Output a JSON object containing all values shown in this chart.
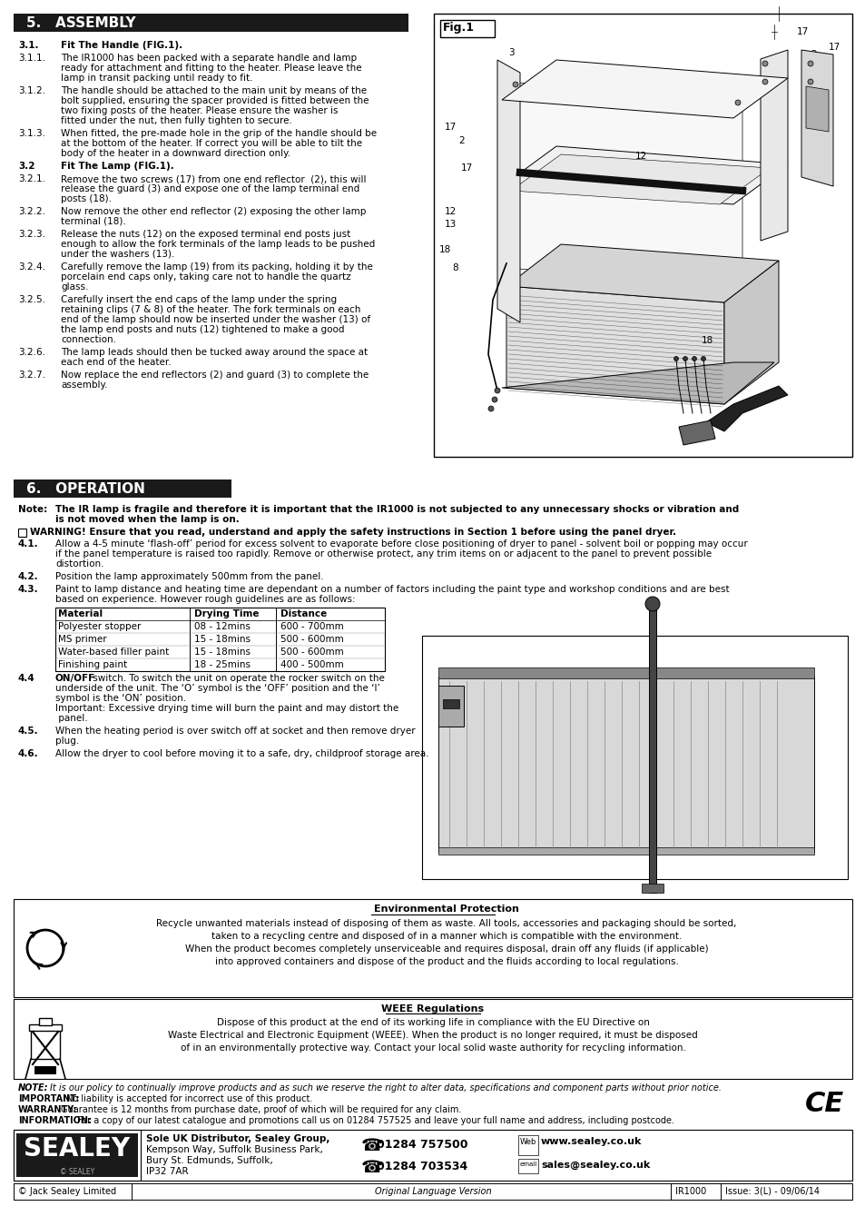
{
  "page_bg": "#ffffff",
  "section_header_bg": "#1a1a1a",
  "section_header_fg": "#ffffff",
  "section5_title": "5.   ASSEMBLY",
  "section6_title": "6.   OPERATION",
  "assembly_items": [
    {
      "num": "3.1.",
      "bold_num": true,
      "bold_text": true,
      "text": "Fit The Handle (FIG.1)."
    },
    {
      "num": "3.1.1.",
      "bold_num": false,
      "bold_text": false,
      "text": "The IR1000 has been packed with a separate handle and lamp\nready for attachment and fitting to the heater. Please leave the\nlamp in transit packing until ready to fit."
    },
    {
      "num": "3.1.2.",
      "bold_num": false,
      "bold_text": false,
      "text": "The handle should be attached to the main unit by means of the\nbolt supplied, ensuring the spacer provided is fitted between the\ntwo fixing posts of the heater. Please ensure the washer is\nfitted under the nut, then fully tighten to secure."
    },
    {
      "num": "3.1.3.",
      "bold_num": false,
      "bold_text": false,
      "text": "When fitted, the pre-made hole in the grip of the handle should be\nat the bottom of the heater. If correct you will be able to tilt the\nbody of the heater in a downward direction only."
    },
    {
      "num": "3.2",
      "bold_num": true,
      "bold_text": true,
      "text": "Fit The Lamp (FIG.1)."
    },
    {
      "num": "3.2.1.",
      "bold_num": false,
      "bold_text": false,
      "text": "Remove the two screws (17) from one end reflector  (2), this will\nrelease the guard (3) and expose one of the lamp terminal end\nposts (18)."
    },
    {
      "num": "3.2.2.",
      "bold_num": false,
      "bold_text": false,
      "text": "Now remove the other end reflector (2) exposing the other lamp\nterminal (18)."
    },
    {
      "num": "3.2.3.",
      "bold_num": false,
      "bold_text": false,
      "text": "Release the nuts (12) on the exposed terminal end posts just\nenough to allow the fork terminals of the lamp leads to be pushed\nunder the washers (13)."
    },
    {
      "num": "3.2.4.",
      "bold_num": false,
      "bold_text": false,
      "text": "Carefully remove the lamp (19) from its packing, holding it by the\nporcelain end caps only, taking care not to handle the quartz\nglass."
    },
    {
      "num": "3.2.5.",
      "bold_num": false,
      "bold_text": false,
      "text": "Carefully insert the end caps of the lamp under the spring\nretaining clips (7 & 8) of the heater. The fork terminals on each\nend of the lamp should now be inserted under the washer (13) of\nthe lamp end posts and nuts (12) tightened to make a good\nconnection."
    },
    {
      "num": "3.2.6.",
      "bold_num": false,
      "bold_text": false,
      "text": "The lamp leads should then be tucked away around the space at\neach end of the heater."
    },
    {
      "num": "3.2.7.",
      "bold_num": false,
      "bold_text": false,
      "text": "Now replace the end reflectors (2) and guard (3) to complete the\nassembly."
    }
  ],
  "note_bold": "The IR lamp is fragile and therefore it is important that the IR1000 is not subjected to any unnecessary shocks or vibration and",
  "note_bold2": "is not moved when the lamp is on.",
  "warning_text": "WARNING! Ensure that you read, understand and apply the safety instructions in Section 1 before using the panel dryer.",
  "op_items": [
    {
      "num": "4.1.",
      "bold_num": true,
      "text": "Allow a 4-5 minute ‘flash-off’ period for excess solvent to evaporate before close positioning of dryer to panel - solvent boil or popping may occur\nif the panel temperature is raised too rapidly. Remove or otherwise protect, any trim items on or adjacent to the panel to prevent possible\ndistortion."
    },
    {
      "num": "4.2.",
      "bold_num": true,
      "text": "Position the lamp approximately 500mm from the panel."
    },
    {
      "num": "4.3.",
      "bold_num": true,
      "text": "Paint to lamp distance and heating time are dependant on a number of factors including the paint type and workshop conditions and are best\nbased on experience. However rough guidelines are as follows:"
    },
    {
      "num": "4.4",
      "bold_num": true,
      "text": " switch. To switch the unit on operate the rocker switch on the\nunderside of the unit. The ‘O’ symbol is the ‘OFF’ position and the ‘I’\nsymbol is the ‘ON’ position.\nImportant: Excessive drying time will burn the paint and may distort the\n panel."
    },
    {
      "num": "4.5.",
      "bold_num": true,
      "text": "When the heating period is over switch off at socket and then remove dryer\nplug."
    },
    {
      "num": "4.6.",
      "bold_num": true,
      "text": "Allow the dryer to cool before moving it to a safe, dry, childproof storage area."
    }
  ],
  "table_headers": [
    "Material",
    "Drying Time",
    "Distance"
  ],
  "table_rows": [
    [
      "Polyester stopper",
      "08 - 12mins",
      "600 - 700mm"
    ],
    [
      "MS primer",
      "15 - 18mins",
      "500 - 600mm"
    ],
    [
      "Water-based filler paint",
      "15 - 18mins",
      "500 - 600mm"
    ],
    [
      "Finishing paint",
      "18 - 25mins",
      "400 - 500mm"
    ]
  ],
  "env_title": "Environmental Protection",
  "env_text_lines": [
    "Recycle unwanted materials instead of disposing of them as waste. All tools, accessories and packaging should be sorted,",
    "taken to a recycling centre and disposed of in a manner which is compatible with the environment.",
    "When the product becomes completely unserviceable and requires disposal, drain off any fluids (if applicable)",
    "into approved containers and dispose of the product and the fluids according to local regulations."
  ],
  "weee_title": "WEEE Regulations",
  "weee_text_lines": [
    "Dispose of this product at the end of its working life in compliance with the EU Directive on",
    "Waste Electrical and Electronic Equipment (WEEE). When the product is no longer required, it must be disposed",
    "of in an environmentally protective way. Contact your local solid waste authority for recycling information."
  ],
  "note_line": "NOTE: It is our policy to continually improve products and as such we reserve the right to alter data, specifications and component parts without prior notice.",
  "important_line": "IMPORTANT: No liability is accepted for incorrect use of this product.",
  "warranty_line": "WARRANTY: Guarantee is 12 months from purchase date, proof of which will be required for any claim.",
  "info_line": "INFORMATION: For a copy of our latest catalogue and promotions call us on 01284 757525 and leave your full name and address, including postcode.",
  "distributor": "Sole UK Distributor, Sealey Group,",
  "address_lines": [
    "Kempson Way, Suffolk Business Park,",
    "Bury St. Edmunds, Suffolk,",
    "IP32 7AR"
  ],
  "phone1": "01284 757500",
  "phone2": "01284 703534",
  "website": "www.sealey.co.uk",
  "email": "sales@sealey.co.uk",
  "footer_left": "© Jack Sealey Limited",
  "footer_center": "Original Language Version",
  "footer_right_a": "IR1000",
  "footer_right_b": "Issue: 3(L) - 09/06/14"
}
